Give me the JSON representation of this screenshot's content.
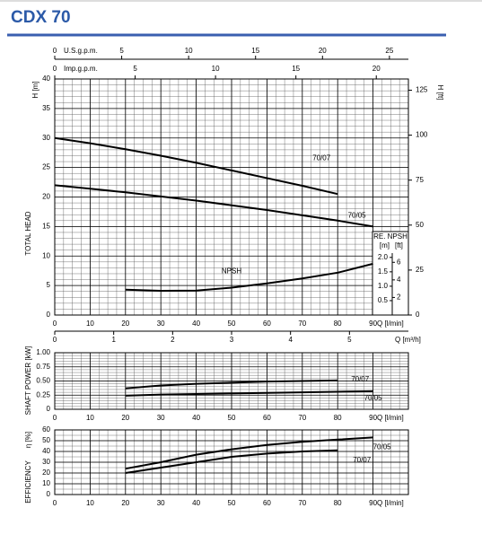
{
  "header": {
    "title": "CDX 70"
  },
  "chart_data": [
    {
      "type": "line",
      "y_label": "TOTAL HEAD",
      "y_unit_label": "H [m]",
      "y2_label": "H [ft]",
      "x_label": "Q [l/min]",
      "x": [
        0,
        10,
        20,
        30,
        40,
        50,
        60,
        70,
        80,
        90
      ],
      "xlim": [
        0,
        100
      ],
      "xticks": [
        0,
        10,
        20,
        30,
        40,
        50,
        60,
        70,
        80,
        90
      ],
      "ylim": [
        0,
        40
      ],
      "yticks": [
        0,
        5,
        10,
        15,
        20,
        25,
        30,
        35,
        40
      ],
      "y2lim": [
        0,
        131.23
      ],
      "y2ticks": [
        0,
        25,
        50,
        75,
        100,
        125
      ],
      "grid": true,
      "series": [
        {
          "name": "70/07",
          "color": "#000000",
          "values": [
            30,
            29.1,
            28.1,
            27.0,
            25.8,
            24.5,
            23.2,
            21.9,
            20.5,
            null
          ]
        },
        {
          "name": "70/05",
          "color": "#000000",
          "values": [
            22,
            21.4,
            20.8,
            20.1,
            19.4,
            18.6,
            17.8,
            16.9,
            16.0,
            15.0
          ]
        },
        {
          "name": "NPSH",
          "color": "#000000",
          "axis": "npsh",
          "values": [
            null,
            null,
            0.88,
            0.84,
            0.85,
            0.95,
            1.1,
            1.27,
            1.47,
            1.78
          ]
        }
      ],
      "npsh": {
        "title": "RE. NPSH",
        "unit_m": "[m]",
        "unit_ft": "[ft]",
        "ylim": [
          0,
          2.15
        ],
        "yticks": [
          0.5,
          {
            "value": 1,
            "label": "1.0"
          },
          1.5,
          {
            "value": 2,
            "label": "2.0"
          }
        ],
        "ft_lim": [
          0,
          7.05
        ],
        "ft_ticks": [
          2,
          4,
          6
        ]
      },
      "top_axes": [
        {
          "label": "U.S.g.p.m.",
          "lim": [
            0,
            26.417
          ],
          "ticks": [
            0,
            5,
            10,
            15,
            20,
            25
          ]
        },
        {
          "label": "Imp.g.p.m.",
          "lim": [
            0,
            21.997
          ],
          "ticks": [
            0,
            5,
            10,
            15,
            20
          ]
        }
      ],
      "flow_m3h_axis": {
        "label": "Q [m³/h]",
        "lim": [
          0,
          6
        ],
        "ticks": [
          0,
          1,
          2,
          3,
          4,
          5
        ]
      }
    },
    {
      "type": "line",
      "y_label": "SHAFT POWER [kW]",
      "x_label": "Q [l/min]",
      "x": [
        0,
        10,
        20,
        30,
        40,
        50,
        60,
        70,
        80,
        90
      ],
      "xlim": [
        0,
        100
      ],
      "xticks": [
        0,
        10,
        20,
        30,
        40,
        50,
        60,
        70,
        80,
        90
      ],
      "ylim": [
        0,
        1
      ],
      "yticks": [
        0,
        0.25,
        {
          "value": 0.5,
          "label": "0.50"
        },
        0.75,
        {
          "value": 1,
          "label": "1.00"
        }
      ],
      "grid": true,
      "series": [
        {
          "name": "70/07",
          "color": "#000000",
          "values": [
            null,
            null,
            0.37,
            0.42,
            0.45,
            0.47,
            0.49,
            0.5,
            0.51,
            null
          ]
        },
        {
          "name": "70/05",
          "color": "#000000",
          "values": [
            null,
            null,
            0.24,
            0.26,
            0.27,
            0.28,
            0.29,
            0.3,
            0.31,
            0.32
          ]
        }
      ]
    },
    {
      "type": "line",
      "y_label": "EFFICIENCY",
      "y_unit_label": "η [%]",
      "x_label": "Q [l/min]",
      "x": [
        0,
        10,
        20,
        30,
        40,
        50,
        60,
        70,
        80,
        90
      ],
      "xlim": [
        0,
        100
      ],
      "xticks": [
        0,
        10,
        20,
        30,
        40,
        50,
        60,
        70,
        80,
        90
      ],
      "ylim": [
        0,
        60
      ],
      "yticks": [
        0,
        10,
        20,
        30,
        40,
        50,
        60
      ],
      "grid": true,
      "series": [
        {
          "name": "70/05",
          "color": "#000000",
          "values": [
            null,
            null,
            24,
            30,
            37,
            42,
            46,
            49,
            51,
            53
          ]
        },
        {
          "name": "70/07",
          "color": "#000000",
          "values": [
            null,
            null,
            20,
            25,
            30,
            35,
            38,
            40,
            41,
            null
          ]
        }
      ]
    }
  ]
}
